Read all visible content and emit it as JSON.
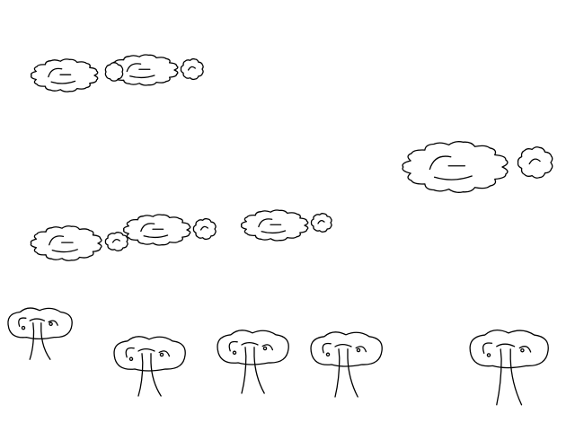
{
  "scene": {
    "background_color": "#ffffff",
    "ink_color": "#000000",
    "clouds": [
      {
        "name": "cloud-large"
      },
      {
        "name": "cloud-small"
      },
      {
        "name": "cloud-puff"
      },
      {
        "name": "cloud-large"
      },
      {
        "name": "cloud-puff"
      },
      {
        "name": "cloud-large"
      },
      {
        "name": "cloud-puff"
      },
      {
        "name": "cloud-large"
      },
      {
        "name": "cloud-small"
      },
      {
        "name": "cloud-puff"
      },
      {
        "name": "cloud-small"
      },
      {
        "name": "cloud-puff"
      }
    ],
    "trees": [
      {
        "name": "tree"
      },
      {
        "name": "tree"
      },
      {
        "name": "tree"
      },
      {
        "name": "tree"
      },
      {
        "name": "tree"
      }
    ]
  }
}
